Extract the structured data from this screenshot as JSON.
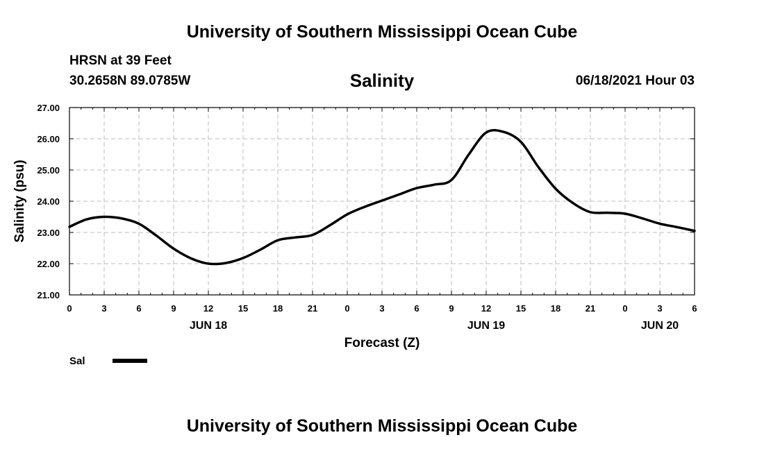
{
  "header": {
    "title_top": "University of Southern Mississippi Ocean Cube",
    "title_bottom": "University of Southern Mississippi Ocean Cube",
    "station_name": "HRSN at 39 Feet",
    "station_coords": "30.2658N  89.0785W",
    "run_time": "06/18/2021 Hour 03"
  },
  "chart_data": {
    "type": "line",
    "title": "Salinity",
    "xlabel": "Forecast (Z)",
    "ylabel": "Salinity (psu)",
    "xlim": [
      0,
      54
    ],
    "ylim": [
      21,
      27
    ],
    "grid": true,
    "x_tick_labels": [
      "0",
      "3",
      "6",
      "9",
      "12",
      "15",
      "18",
      "21",
      "0",
      "3",
      "6",
      "9",
      "12",
      "15",
      "18",
      "21",
      "0",
      "3",
      "6"
    ],
    "day_labels": [
      {
        "hour": 12,
        "label": "JUN 18"
      },
      {
        "hour": 36,
        "label": "JUN 19"
      },
      {
        "hour": 51,
        "label": "JUN 20"
      }
    ],
    "y_tick_labels": [
      "21.00",
      "22.00",
      "23.00",
      "24.00",
      "25.00",
      "26.00",
      "27.00"
    ],
    "legend": {
      "position": "bottom-left",
      "label": "Sal"
    },
    "series": [
      {
        "name": "Sal",
        "x": [
          0,
          1.5,
          3,
          4.5,
          6,
          7.5,
          9,
          10.5,
          12,
          13.5,
          15,
          16.5,
          18,
          19.5,
          21,
          22.5,
          24,
          25.5,
          27,
          28.5,
          30,
          31.5,
          33,
          34.5,
          36,
          37.5,
          39,
          40.5,
          42,
          43.5,
          45,
          46.5,
          48,
          49.5,
          51,
          52.5,
          54
        ],
        "values": [
          23.18,
          23.42,
          23.5,
          23.45,
          23.28,
          22.9,
          22.48,
          22.17,
          22.0,
          22.02,
          22.18,
          22.45,
          22.75,
          22.84,
          22.92,
          23.23,
          23.58,
          23.82,
          24.02,
          24.22,
          24.42,
          24.53,
          24.68,
          25.5,
          26.2,
          26.22,
          25.9,
          25.1,
          24.4,
          23.94,
          23.65,
          23.63,
          23.6,
          23.45,
          23.28,
          23.17,
          23.05
        ]
      }
    ]
  }
}
